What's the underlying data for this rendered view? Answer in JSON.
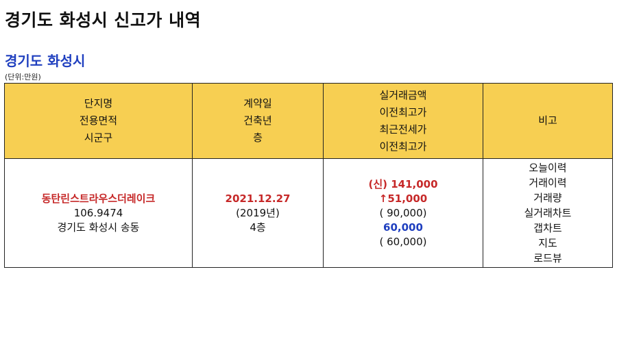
{
  "header": {
    "title": "경기도 화성시 신고가 내역",
    "region": "경기도 화성시",
    "unit": "(단위:만원)"
  },
  "table": {
    "columns": [
      [
        "단지명",
        "전용면적",
        "시군구"
      ],
      [
        "계약일",
        "건축년",
        "층"
      ],
      [
        "실거래금액",
        "이전최고가",
        "최근전세가",
        "이전최고가"
      ],
      [
        "비고"
      ]
    ],
    "row": {
      "complex_name": "동탄린스트라우스더레이크",
      "area": "106.9474",
      "district": "경기도 화성시 송동",
      "contract_date": "2021.12.27",
      "built_year": "(2019년)",
      "floor": "4층",
      "price": "(신) 141,000",
      "prev_high_diff": "51,000",
      "prev_high_diff_arrow": "↑",
      "prev_high": "( 90,000)",
      "recent_jeonse": "60,000",
      "prev_jeonse_high": "( 60,000)",
      "remarks": [
        "오늘이력",
        "거래이력",
        "거래량",
        "실거래차트",
        "갭차트",
        "지도",
        "로드뷰"
      ]
    }
  },
  "colors": {
    "header_bg": "#f7cf52",
    "accent_red": "#c62828",
    "accent_blue": "#1f3fbf"
  }
}
